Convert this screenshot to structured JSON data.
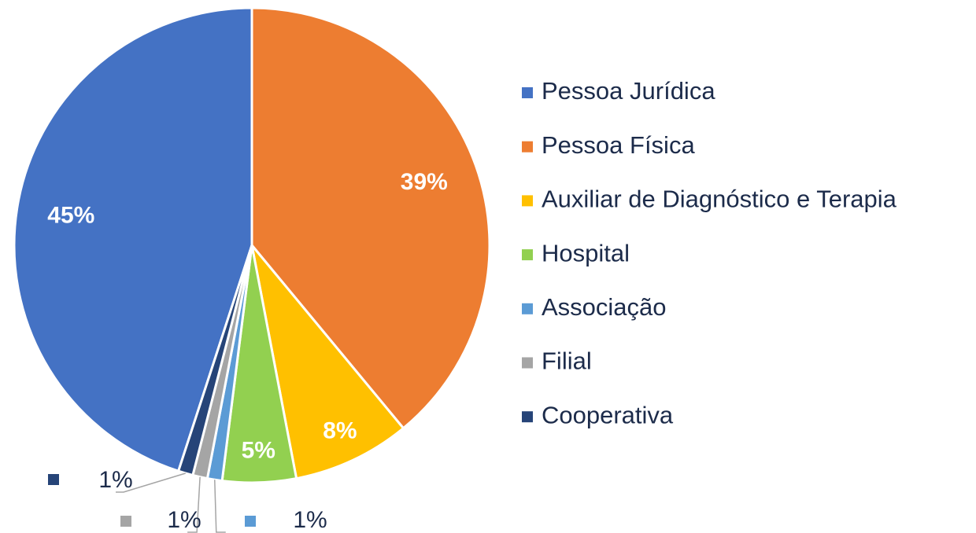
{
  "chart_data": {
    "type": "pie",
    "categories": [
      "Pessoa Jurídica",
      "Pessoa Física",
      "Auxiliar de Diagnóstico e Terapia",
      "Hospital",
      "Associação",
      "Filial",
      "Cooperativa"
    ],
    "values": [
      45,
      39,
      8,
      5,
      1,
      1,
      1
    ],
    "value_labels": [
      "45%",
      "39%",
      "8%",
      "5%",
      "1%",
      "1%",
      "1%"
    ],
    "colors": [
      "#4472c4",
      "#ed7d31",
      "#ffc000",
      "#92d050",
      "#5b9bd5",
      "#a5a5a5",
      "#264478"
    ],
    "legend": "right"
  }
}
